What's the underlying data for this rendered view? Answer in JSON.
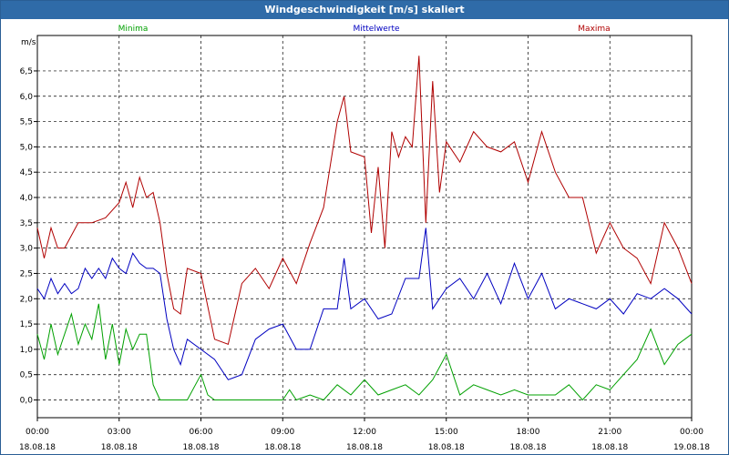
{
  "window": {
    "title": "Windgeschwindigkeit [m/s] skaliert"
  },
  "chart_data": {
    "type": "line",
    "title": "Windgeschwindigkeit [m/s] skaliert",
    "ylabel": "m/s",
    "ylim": [
      -0.35,
      7.2
    ],
    "xlim": [
      0,
      24
    ],
    "grid": true,
    "legend_position": "top",
    "y_ticks": [
      "0,0",
      "0,5",
      "1,0",
      "1,5",
      "2,0",
      "2,5",
      "3,0",
      "3,5",
      "4,0",
      "4,5",
      "5,0",
      "5,5",
      "6,0",
      "6,5"
    ],
    "x_ticks": [
      {
        "time": "00:00",
        "date": "18.08.18"
      },
      {
        "time": "03:00",
        "date": "18.08.18"
      },
      {
        "time": "06:00",
        "date": "18.08.18"
      },
      {
        "time": "09:00",
        "date": "18.08.18"
      },
      {
        "time": "12:00",
        "date": "18.08.18"
      },
      {
        "time": "15:00",
        "date": "18.08.18"
      },
      {
        "time": "18:00",
        "date": "18.08.18"
      },
      {
        "time": "21:00",
        "date": "18.08.18"
      },
      {
        "time": "00:00",
        "date": "19.08.18"
      }
    ],
    "series": [
      {
        "name": "Minima",
        "color": "#00a000",
        "x": [
          0,
          0.25,
          0.5,
          0.75,
          1,
          1.25,
          1.5,
          1.75,
          2,
          2.25,
          2.5,
          2.75,
          3,
          3.25,
          3.5,
          3.75,
          4,
          4.25,
          4.5,
          4.75,
          5,
          5.5,
          6,
          6.25,
          6.5,
          7,
          7.5,
          8,
          8.5,
          9,
          9.25,
          9.5,
          10,
          10.5,
          11,
          11.5,
          12,
          12.5,
          13,
          13.5,
          14,
          14.5,
          15,
          15.5,
          16,
          16.5,
          17,
          17.5,
          18,
          18.5,
          19,
          19.5,
          20,
          20.5,
          21,
          21.5,
          22,
          22.5,
          23,
          23.5,
          24
        ],
        "y": [
          1.3,
          0.8,
          1.5,
          0.9,
          1.3,
          1.7,
          1.1,
          1.5,
          1.2,
          1.9,
          0.8,
          1.5,
          0.7,
          1.4,
          1.0,
          1.3,
          1.3,
          0.3,
          0.0,
          0.0,
          0.0,
          0.0,
          0.5,
          0.1,
          0.0,
          0.0,
          0.0,
          0.0,
          0.0,
          0.0,
          0.2,
          0.0,
          0.1,
          0.0,
          0.3,
          0.1,
          0.4,
          0.1,
          0.2,
          0.3,
          0.1,
          0.4,
          0.9,
          0.1,
          0.3,
          0.2,
          0.1,
          0.2,
          0.1,
          0.1,
          0.1,
          0.3,
          0.0,
          0.3,
          0.2,
          0.5,
          0.8,
          1.4,
          0.7,
          1.1,
          1.3
        ]
      },
      {
        "name": "Mittelwerte",
        "color": "#0000c0",
        "x": [
          0,
          0.25,
          0.5,
          0.75,
          1,
          1.25,
          1.5,
          1.75,
          2,
          2.25,
          2.5,
          2.75,
          3,
          3.25,
          3.5,
          3.75,
          4,
          4.25,
          4.5,
          4.75,
          5,
          5.25,
          5.5,
          6,
          6.5,
          7,
          7.5,
          8,
          8.5,
          9,
          9.5,
          10,
          10.5,
          11,
          11.25,
          11.5,
          12,
          12.5,
          13,
          13.5,
          14,
          14.25,
          14.5,
          15,
          15.5,
          16,
          16.5,
          17,
          17.5,
          18,
          18.5,
          19,
          19.5,
          20,
          20.5,
          21,
          21.5,
          22,
          22.5,
          23,
          23.5,
          24
        ],
        "y": [
          2.2,
          2.0,
          2.4,
          2.1,
          2.3,
          2.1,
          2.2,
          2.6,
          2.4,
          2.6,
          2.4,
          2.8,
          2.6,
          2.5,
          2.9,
          2.7,
          2.6,
          2.6,
          2.5,
          1.6,
          1.0,
          0.7,
          1.2,
          1.0,
          0.8,
          0.4,
          0.5,
          1.2,
          1.4,
          1.5,
          1.0,
          1.0,
          1.8,
          1.8,
          2.8,
          1.8,
          2.0,
          1.6,
          1.7,
          2.4,
          2.4,
          3.4,
          1.8,
          2.2,
          2.4,
          2.0,
          2.5,
          1.9,
          2.7,
          2.0,
          2.5,
          1.8,
          2.0,
          1.9,
          1.8,
          2.0,
          1.7,
          2.1,
          2.0,
          2.2,
          2.0,
          1.7
        ]
      },
      {
        "name": "Maxima",
        "color": "#b00000",
        "x": [
          0,
          0.25,
          0.5,
          0.75,
          1,
          1.5,
          2,
          2.5,
          3,
          3.25,
          3.5,
          3.75,
          4,
          4.25,
          4.5,
          4.75,
          5,
          5.25,
          5.5,
          6,
          6.5,
          7,
          7.5,
          8,
          8.5,
          9,
          9.5,
          10,
          10.5,
          11,
          11.25,
          11.5,
          12,
          12.25,
          12.5,
          12.75,
          13,
          13.25,
          13.5,
          13.75,
          14,
          14.25,
          14.5,
          14.75,
          15,
          15.5,
          16,
          16.5,
          17,
          17.5,
          18,
          18.5,
          19,
          19.5,
          20,
          20.5,
          21,
          21.5,
          22,
          22.5,
          23,
          23.5,
          24
        ],
        "y": [
          3.4,
          2.8,
          3.4,
          3.0,
          3.0,
          3.5,
          3.5,
          3.6,
          3.9,
          4.3,
          3.8,
          4.4,
          4.0,
          4.1,
          3.5,
          2.5,
          1.8,
          1.7,
          2.6,
          2.5,
          1.2,
          1.1,
          2.3,
          2.6,
          2.2,
          2.8,
          2.3,
          3.1,
          3.8,
          5.5,
          6.0,
          4.9,
          4.8,
          3.3,
          4.6,
          3.0,
          5.3,
          4.8,
          5.2,
          5.0,
          6.8,
          3.5,
          6.3,
          4.1,
          5.1,
          4.7,
          5.3,
          5.0,
          4.9,
          5.1,
          4.3,
          5.3,
          4.5,
          4.0,
          4.0,
          2.9,
          3.5,
          3.0,
          2.8,
          2.3,
          3.5,
          3.0,
          2.3
        ]
      }
    ]
  }
}
